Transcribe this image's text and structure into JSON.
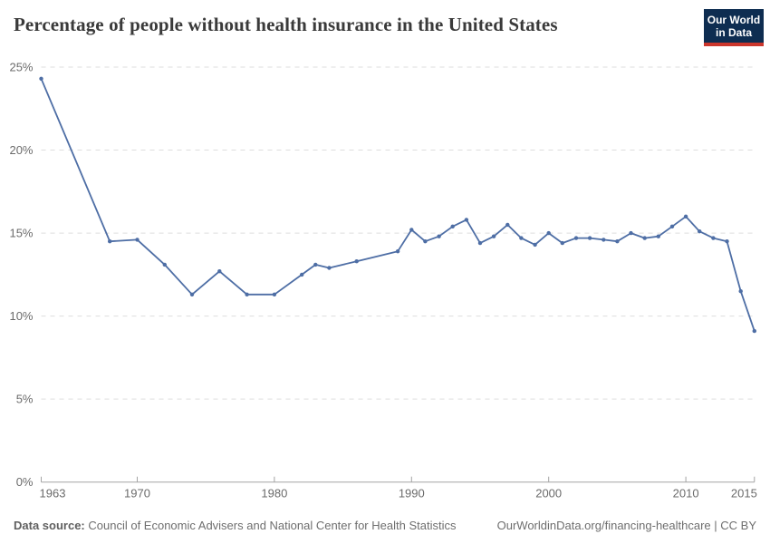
{
  "header": {
    "title": "Percentage of people without health insurance in the United States",
    "logo": {
      "line1": "Our World",
      "line2": "in Data"
    }
  },
  "chart_data": {
    "type": "line",
    "title": "Percentage of people without health insurance in the United States",
    "x": [
      1963,
      1968,
      1970,
      1972,
      1974,
      1976,
      1978,
      1980,
      1982,
      1983,
      1984,
      1986,
      1989,
      1990,
      1991,
      1992,
      1993,
      1994,
      1995,
      1996,
      1997,
      1998,
      1999,
      2000,
      2001,
      2002,
      2003,
      2004,
      2005,
      2006,
      2007,
      2008,
      2009,
      2010,
      2011,
      2012,
      2013,
      2014,
      2015
    ],
    "values": [
      24.3,
      14.5,
      14.6,
      13.1,
      11.3,
      12.7,
      11.3,
      11.3,
      12.5,
      13.1,
      12.9,
      13.3,
      13.9,
      15.2,
      14.5,
      14.8,
      15.4,
      15.8,
      14.4,
      14.8,
      15.5,
      14.7,
      14.3,
      15.0,
      14.4,
      14.7,
      14.7,
      14.6,
      14.5,
      15.0,
      14.7,
      14.8,
      15.4,
      16.0,
      15.1,
      14.7,
      14.5,
      11.5,
      9.1
    ],
    "unit": "%",
    "xlabel": "",
    "ylabel": "",
    "xlim": [
      1963,
      2015
    ],
    "ylim": [
      0,
      25
    ],
    "x_ticks": [
      {
        "v": 1963,
        "label": "1963",
        "align": "start"
      },
      {
        "v": 1970,
        "label": "1970",
        "align": "middle"
      },
      {
        "v": 1980,
        "label": "1980",
        "align": "middle"
      },
      {
        "v": 1990,
        "label": "1990",
        "align": "middle"
      },
      {
        "v": 2000,
        "label": "2000",
        "align": "middle"
      },
      {
        "v": 2010,
        "label": "2010",
        "align": "middle"
      },
      {
        "v": 2015,
        "label": "2015",
        "align": "end"
      }
    ],
    "y_ticks": [
      {
        "v": 0,
        "label": "0%"
      },
      {
        "v": 5,
        "label": "5%"
      },
      {
        "v": 10,
        "label": "10%"
      },
      {
        "v": 15,
        "label": "15%"
      },
      {
        "v": 20,
        "label": "20%"
      },
      {
        "v": 25,
        "label": "25%"
      }
    ],
    "grid": "horizontal-dashed",
    "legend": "none",
    "marker": "circle",
    "line_color": "#4e6ea5"
  },
  "footer": {
    "source_label": "Data source:",
    "source_text": "Council of Economic Advisers and National Center for Health Statistics",
    "link_text": "OurWorldinData.org/financing-healthcare | CC BY"
  },
  "colors": {
    "line": "#4e6ea5",
    "logo_bg": "#0e2d51",
    "logo_accent": "#cb362c",
    "grid": "#dddddd",
    "axis": "#a3a3a3",
    "tick_label": "#6b6b6b",
    "title": "#3a3a3a",
    "footer_text": "#6e6e6e"
  }
}
